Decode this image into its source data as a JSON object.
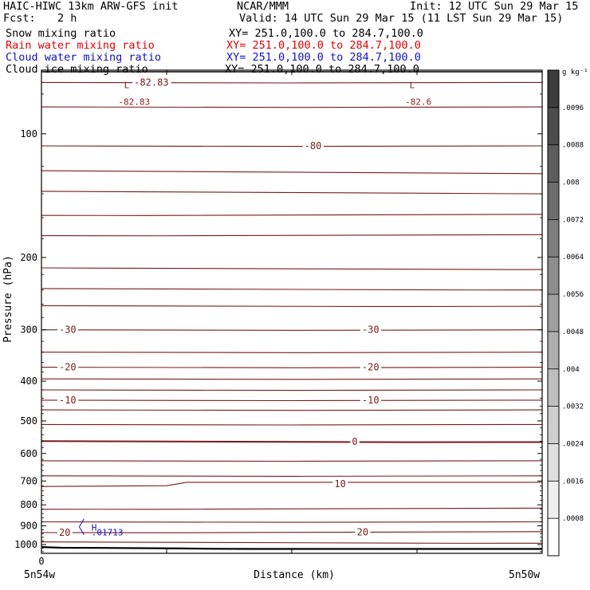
{
  "header": {
    "model": "HAIC-HIWC 13km ARW-GFS init",
    "center": "NCAR/MMM",
    "init": "Init: 12 UTC Sun 29 Mar 15",
    "fcst_label": "Fcst:",
    "fcst_value": "2 h",
    "valid": "Valid: 14 UTC Sun 29 Mar 15 (11 LST Sun 29 Mar 15)"
  },
  "fields": [
    {
      "name": "Snow mixing ratio",
      "xsec": "XY= 251.0,100.0 to 284.7,100.0",
      "color": "#000000"
    },
    {
      "name": "Rain water mixing ratio",
      "xsec": "XY= 251.0,100.0 to 284.7,100.0",
      "color": "#e00000"
    },
    {
      "name": "Cloud water mixing ratio",
      "xsec": "XY= 251.0,100.0 to 284.7,100.0",
      "color": "#1010c8"
    },
    {
      "name": "Cloud ice mixing ratio",
      "xsec": "XY= 251.0,100.0 to 284.7,100.0",
      "color": "#000000"
    }
  ],
  "chart_data": {
    "type": "contour",
    "ylabel": "Pressure (hPa)",
    "xlabel": "Distance (km)",
    "y_scale": "log",
    "y_ticks": [
      100,
      200,
      300,
      400,
      500,
      600,
      700,
      800,
      900,
      1000
    ],
    "ylim": [
      1050,
      70
    ],
    "x_tick_label": "0",
    "x_end_labels": [
      "5n54w",
      "5n50w"
    ],
    "x_ticks_frac": [
      0,
      0.25,
      0.5,
      0.75,
      1.0
    ],
    "temperature_isotherms": [
      {
        "label": "-82.83",
        "p": [
          75,
          75
        ]
      },
      {
        "label": "",
        "p": [
          86,
          86
        ]
      },
      {
        "label": "-80",
        "p": [
          107,
          107
        ]
      },
      {
        "label": "",
        "p": [
          123,
          125
        ]
      },
      {
        "label": "",
        "p": [
          138,
          140
        ]
      },
      {
        "label": "",
        "p": [
          158,
          157
        ]
      },
      {
        "label": "",
        "p": [
          177,
          176
        ]
      },
      {
        "label": "",
        "p": [
          212,
          214
        ]
      },
      {
        "label": "",
        "p": [
          238,
          240
        ]
      },
      {
        "label": "",
        "p": [
          262,
          263
        ]
      },
      {
        "label": "-30",
        "p": [
          300,
          300
        ]
      },
      {
        "label": "",
        "p": [
          340,
          340
        ]
      },
      {
        "label": "-20",
        "p": [
          370,
          370
        ]
      },
      {
        "label": "",
        "p": [
          395,
          395
        ]
      },
      {
        "label": "",
        "p": [
          420,
          420
        ]
      },
      {
        "label": "-10",
        "p": [
          445,
          445
        ]
      },
      {
        "label": "",
        "p": [
          470,
          470
        ]
      },
      {
        "label": "",
        "p": [
          510,
          510
        ]
      },
      {
        "label": "0",
        "p": [
          560,
          563
        ]
      },
      {
        "label": "",
        "p": [
          625,
          625
        ]
      },
      {
        "label": "",
        "p": [
          680,
          680
        ]
      },
      {
        "label": "10",
        "p": [
          722,
          705
        ]
      },
      {
        "label": "",
        "p": [
          820,
          815
        ]
      },
      {
        "label": "",
        "p": [
          880,
          880
        ]
      },
      {
        "label": "20",
        "p": [
          935,
          930
        ]
      },
      {
        "label": "",
        "p": [
          985,
          992
        ]
      }
    ],
    "annotations": [
      {
        "text": "L",
        "value": "-82.83",
        "color": "#8b1a1a"
      },
      {
        "text": "L",
        "value": "-82.6",
        "color": "#8b1a1a"
      },
      {
        "text": "H",
        "value": ".01713",
        "color": "#1010c8"
      }
    ],
    "colorbar": {
      "unit": "g kg⁻¹",
      "labels": [
        ".0096",
        ".0088",
        ".008",
        ".0072",
        ".0064",
        ".0056",
        ".0048",
        ".004",
        ".0032",
        ".0024",
        ".0016",
        ".0008"
      ]
    }
  }
}
